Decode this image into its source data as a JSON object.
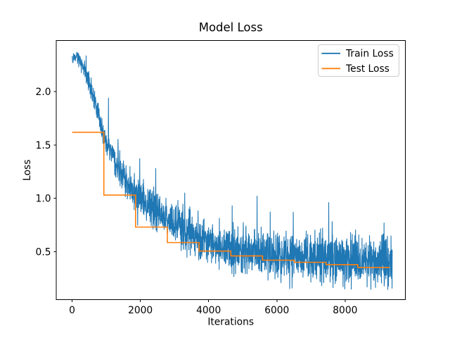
{
  "chart_data": {
    "type": "line",
    "title": "Model Loss",
    "xlabel": "Iterations",
    "ylabel": "Loss",
    "xlim": [
      -465,
      9765
    ],
    "ylim": [
      0.05,
      2.479
    ],
    "grid": false,
    "x_ticks": {
      "values": [
        0,
        2000,
        4000,
        6000,
        8000
      ],
      "labels": [
        "0",
        "2000",
        "4000",
        "6000",
        "8000"
      ]
    },
    "y_ticks": {
      "values": [
        0.5,
        1.0,
        1.5,
        2.0
      ],
      "labels": [
        "0.5",
        "1.0",
        "1.5",
        "2.0"
      ]
    },
    "legend": {
      "position": "upper right"
    },
    "series": [
      {
        "name": "Train Loss",
        "color": "#1f77b4",
        "style": "noisy-line",
        "x_start": 0,
        "x_end": 9380,
        "mean_anchors": [
          [
            0,
            2.31
          ],
          [
            120,
            2.34
          ],
          [
            300,
            2.25
          ],
          [
            500,
            2.08
          ],
          [
            700,
            1.88
          ],
          [
            900,
            1.6
          ],
          [
            1100,
            1.46
          ],
          [
            1300,
            1.31
          ],
          [
            1500,
            1.19
          ],
          [
            1700,
            1.11
          ],
          [
            1900,
            1.05
          ],
          [
            2200,
            0.95
          ],
          [
            2500,
            0.87
          ],
          [
            2800,
            0.8
          ],
          [
            3100,
            0.73
          ],
          [
            3400,
            0.68
          ],
          [
            3700,
            0.64
          ],
          [
            4000,
            0.6
          ],
          [
            4400,
            0.56
          ],
          [
            4800,
            0.535
          ],
          [
            5200,
            0.51
          ],
          [
            5600,
            0.49
          ],
          [
            6000,
            0.47
          ],
          [
            6500,
            0.455
          ],
          [
            7000,
            0.44
          ],
          [
            7500,
            0.432
          ],
          [
            8000,
            0.422
          ],
          [
            8500,
            0.414
          ],
          [
            9000,
            0.407
          ],
          [
            9380,
            0.4
          ]
        ],
        "noise": {
          "seed": 42,
          "step": 5,
          "base_amp": 0.04,
          "amp_growth": 0.17,
          "amp_tau": 2000,
          "spike_prob": 0.006,
          "spike_min": 0.1,
          "spike_max": 0.38,
          "dip_prob": 0.004,
          "dip_min": 0.05,
          "dip_max": 0.2,
          "clamp_min": 0.13,
          "clamp_max": 2.42
        },
        "spikes": [
          [
            2450,
            1.28
          ],
          [
            3300,
            1.05
          ],
          [
            4690,
            0.93
          ],
          [
            5420,
            1.02
          ],
          [
            6480,
            0.87
          ],
          [
            7520,
            0.96
          ],
          [
            9140,
            0.77
          ]
        ]
      },
      {
        "name": "Test Loss",
        "color": "#ff7f0e",
        "style": "step",
        "step_edges": [
          0,
          930,
          1860,
          2790,
          3720,
          4650,
          5580,
          6510,
          7440,
          8370,
          9310
        ],
        "step_values": [
          1.62,
          1.03,
          0.73,
          0.585,
          0.505,
          0.46,
          0.42,
          0.4,
          0.378,
          0.352
        ]
      }
    ]
  },
  "colors": {
    "background": "#ffffff",
    "text": "#000000",
    "spine": "#000000",
    "legend_edge": "#cccccc",
    "legend_fill": "#ffffff"
  }
}
